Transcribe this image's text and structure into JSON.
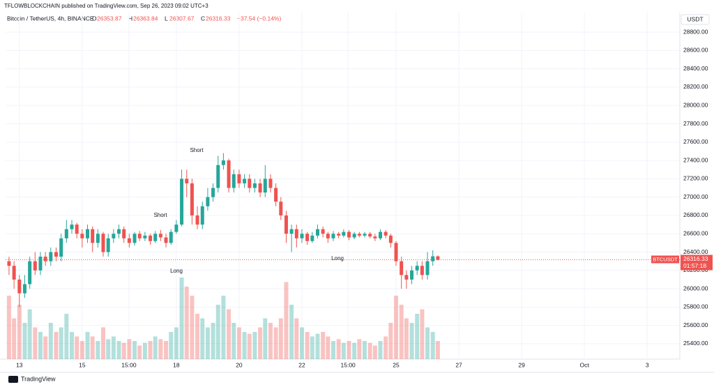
{
  "header": {
    "publisher": "TFLOWBLOCKCHAIN published on TradingView.com, Sep 26, 2023 09:02 UTC+3",
    "symbol": "Bitcoin / TetherUS, 4h, BINANCE",
    "ohlc_labels": [
      "O",
      "H",
      "L",
      "C"
    ],
    "change": "−37.54 (−0.14%)"
  },
  "footer": {
    "brand": "TradingView"
  },
  "chart_data": {
    "type": "candlestick",
    "currency": "USDT",
    "ticker": "BTCUSDT",
    "countdown": "01:57:18",
    "up_color": "#26a69a",
    "down_color": "#ef5350",
    "xlim": [
      12.56,
      34.04
    ],
    "ylim": [
      25232,
      29014
    ],
    "vlim": [
      0,
      100
    ],
    "xticks": [
      13,
      15,
      {
        "value": 16.49,
        "label": "15:00"
      },
      18,
      20,
      22,
      {
        "value": 23.47,
        "label": "15:00"
      },
      25,
      27,
      29,
      {
        "value": 31,
        "label": "Oct"
      },
      {
        "value": 33,
        "label": "3"
      }
    ],
    "yticks": [
      {
        "value": 25400,
        "label": "25400.00"
      },
      {
        "value": 25600,
        "label": "25600.00"
      },
      {
        "value": 25800,
        "label": "25800.00"
      },
      {
        "value": 26000,
        "label": "26000.00"
      },
      {
        "value": 26200,
        "label": "26200.00"
      },
      {
        "value": 26400,
        "label": "26400.00"
      },
      {
        "value": 26600,
        "label": "26600.00"
      },
      {
        "value": 26800,
        "label": "26800.00"
      },
      {
        "value": 27000,
        "label": "27000.00"
      },
      {
        "value": 27200,
        "label": "27200.00"
      },
      {
        "value": 27400,
        "label": "27400.00"
      },
      {
        "value": 27600,
        "label": "27600.00"
      },
      {
        "value": 27800,
        "label": "27800.00"
      },
      {
        "value": 28000,
        "label": "28000.00"
      },
      {
        "value": 28200,
        "label": "28200.00"
      },
      {
        "value": 28400,
        "label": "28400.00"
      },
      {
        "value": 28600,
        "label": "28600.00"
      },
      {
        "value": 28800,
        "label": "28800.00"
      }
    ],
    "grid": true,
    "x": [
      12.67,
      12.83,
      13.0,
      13.17,
      13.33,
      13.5,
      13.67,
      13.83,
      14.0,
      14.17,
      14.33,
      14.5,
      14.67,
      14.83,
      15.0,
      15.17,
      15.33,
      15.5,
      15.67,
      15.83,
      16.0,
      16.17,
      16.33,
      16.5,
      16.67,
      16.83,
      17.0,
      17.17,
      17.33,
      17.5,
      17.67,
      17.83,
      18.0,
      18.17,
      18.33,
      18.5,
      18.67,
      18.83,
      19.0,
      19.17,
      19.33,
      19.5,
      19.67,
      19.83,
      20.0,
      20.17,
      20.33,
      20.5,
      20.67,
      20.83,
      21.0,
      21.17,
      21.33,
      21.5,
      21.67,
      21.83,
      22.0,
      22.17,
      22.33,
      22.5,
      22.67,
      22.83,
      23.0,
      23.17,
      23.33,
      23.5,
      23.67,
      23.83,
      24.0,
      24.17,
      24.33,
      24.5,
      24.67,
      24.83,
      25.0,
      25.17,
      25.33,
      25.5,
      25.67,
      25.83,
      26.0,
      26.17,
      26.33
    ],
    "open": [
      26300,
      26250,
      26100,
      25950,
      26050,
      26300,
      26200,
      26350,
      26300,
      26400,
      26350,
      26550,
      26650,
      26700,
      26600,
      26550,
      26650,
      26500,
      26600,
      26400,
      26550,
      26600,
      26650,
      26550,
      26500,
      26600,
      26550,
      26580,
      26520,
      26600,
      26560,
      26500,
      26620,
      26700,
      27200,
      27150,
      26800,
      26700,
      26900,
      27000,
      27100,
      27350,
      27400,
      27100,
      27250,
      27150,
      27200,
      27100,
      27150,
      27050,
      27200,
      27100,
      26950,
      26800,
      26600,
      26650,
      26550,
      26600,
      26520,
      26580,
      26650,
      26600,
      26550,
      26600,
      26580,
      26620,
      26560,
      26600,
      26580,
      26600,
      26570,
      26550,
      26620,
      26580,
      26500,
      26300,
      26150,
      26100,
      26200,
      26250,
      26150,
      26300,
      26353.87
    ],
    "high": [
      26350,
      26300,
      26150,
      26150,
      26350,
      26400,
      26400,
      26400,
      26450,
      26450,
      26600,
      26750,
      26750,
      26720,
      26650,
      26700,
      26680,
      26650,
      26620,
      26600,
      26650,
      26700,
      26680,
      26600,
      26620,
      26630,
      26620,
      26600,
      26630,
      26640,
      26600,
      26650,
      26750,
      27300,
      27300,
      27200,
      26900,
      26950,
      27100,
      27150,
      27450,
      27480,
      27420,
      27300,
      27300,
      27250,
      27250,
      27200,
      27200,
      27350,
      27250,
      27150,
      27000,
      26850,
      26700,
      26700,
      26650,
      26620,
      26620,
      26700,
      26680,
      26620,
      26630,
      26620,
      26650,
      26640,
      26620,
      26620,
      26620,
      26620,
      26600,
      26650,
      26640,
      26600,
      26520,
      26350,
      26200,
      26250,
      26300,
      26300,
      26400,
      26420,
      26363.84
    ],
    "low": [
      26150,
      26000,
      25800,
      25900,
      26000,
      26150,
      26150,
      26250,
      26250,
      26300,
      26300,
      26500,
      26600,
      26550,
      26450,
      26500,
      26400,
      26450,
      26350,
      26350,
      26500,
      26550,
      26500,
      26450,
      26470,
      26520,
      26520,
      26480,
      26500,
      26520,
      26450,
      26480,
      26600,
      26680,
      27000,
      26700,
      26650,
      26650,
      26850,
      26950,
      27050,
      27300,
      27050,
      27050,
      27100,
      27100,
      27050,
      27050,
      27000,
      27000,
      27050,
      26900,
      26750,
      26500,
      26400,
      26450,
      26500,
      26480,
      26500,
      26550,
      26560,
      26500,
      26520,
      26550,
      26560,
      26530,
      26540,
      26560,
      26560,
      26550,
      26520,
      26530,
      26550,
      26450,
      26250,
      26000,
      26000,
      26050,
      26150,
      26100,
      26100,
      26250,
      26307.67
    ],
    "close": [
      26250,
      26100,
      25950,
      26050,
      26300,
      26200,
      26350,
      26300,
      26400,
      26350,
      26550,
      26650,
      26700,
      26600,
      26550,
      26650,
      26500,
      26600,
      26400,
      26550,
      26600,
      26650,
      26550,
      26500,
      26600,
      26550,
      26580,
      26520,
      26600,
      26560,
      26500,
      26620,
      26700,
      27200,
      27150,
      26800,
      26700,
      26900,
      27000,
      27100,
      27350,
      27400,
      27100,
      27250,
      27150,
      27200,
      27100,
      27150,
      27050,
      27200,
      27100,
      26950,
      26800,
      26600,
      26650,
      26550,
      26600,
      26520,
      26580,
      26650,
      26600,
      26550,
      26600,
      26580,
      26620,
      26560,
      26600,
      26580,
      26600,
      26570,
      26550,
      26620,
      26580,
      26500,
      26300,
      26150,
      26100,
      26200,
      26250,
      26150,
      26300,
      26353.87,
      26316.33
    ],
    "volume": [
      70,
      45,
      60,
      40,
      55,
      35,
      30,
      25,
      40,
      30,
      35,
      50,
      30,
      25,
      20,
      30,
      25,
      20,
      35,
      22,
      25,
      20,
      18,
      22,
      20,
      15,
      18,
      20,
      25,
      22,
      20,
      30,
      35,
      90,
      80,
      70,
      50,
      45,
      35,
      40,
      60,
      70,
      55,
      40,
      35,
      30,
      28,
      30,
      35,
      45,
      40,
      35,
      45,
      85,
      60,
      45,
      35,
      30,
      25,
      28,
      30,
      25,
      20,
      22,
      18,
      20,
      18,
      22,
      20,
      18,
      15,
      20,
      25,
      40,
      70,
      60,
      45,
      40,
      50,
      55,
      35,
      30,
      20
    ],
    "annotations": [
      "Short",
      "Short",
      "Long",
      "Long"
    ]
  }
}
